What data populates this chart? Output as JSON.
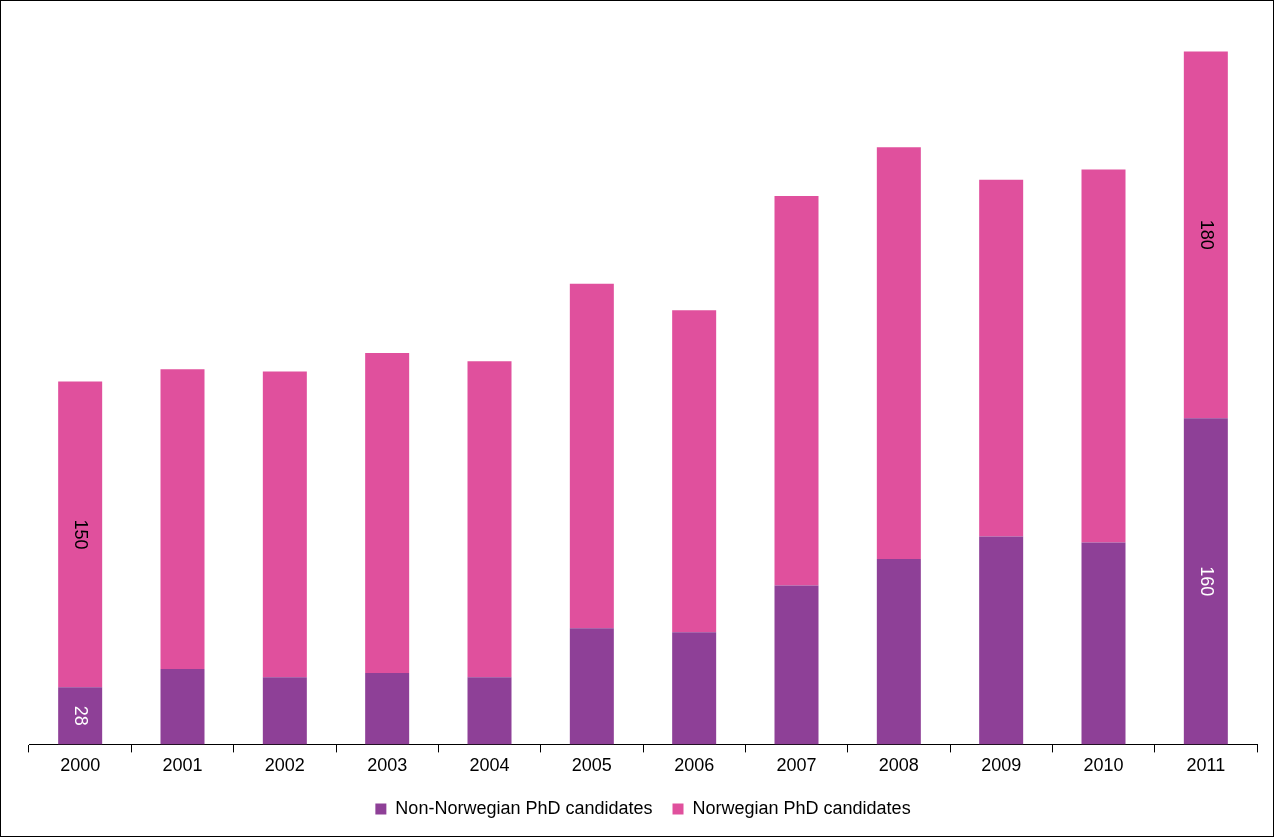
{
  "chart_data": {
    "type": "bar",
    "stacked": true,
    "legend": "bottom",
    "categories": [
      "2000",
      "2001",
      "2002",
      "2003",
      "2004",
      "2005",
      "2006",
      "2007",
      "2008",
      "2009",
      "2010",
      "2011"
    ],
    "series": [
      {
        "name": "Non-Norwegian PhD candidates",
        "color": "#8e4097",
        "values": [
          28,
          37,
          33,
          35,
          33,
          57,
          55,
          78,
          91,
          102,
          99,
          160
        ],
        "value_labels": [
          "28",
          null,
          null,
          null,
          null,
          null,
          null,
          null,
          null,
          null,
          null,
          "160"
        ]
      },
      {
        "name": "Norwegian PhD candidates",
        "color": "#e0509d",
        "values": [
          150,
          147,
          150,
          157,
          155,
          169,
          158,
          191,
          202,
          175,
          183,
          180
        ],
        "value_labels": [
          "150",
          null,
          null,
          null,
          null,
          null,
          null,
          null,
          null,
          null,
          null,
          "180"
        ]
      }
    ]
  }
}
